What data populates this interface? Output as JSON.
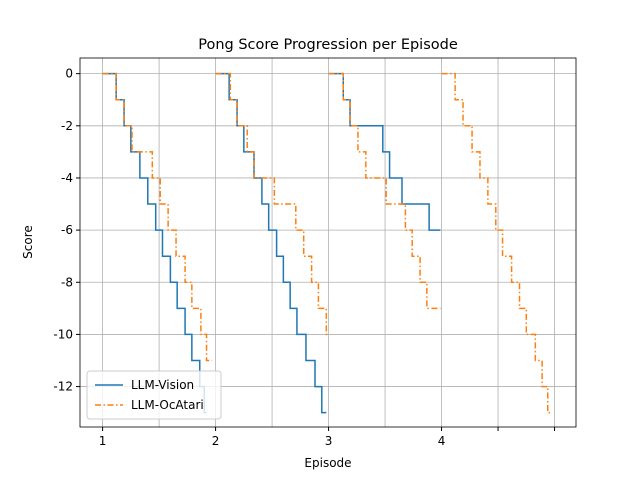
{
  "chart_data": {
    "type": "step",
    "title": "Pong Score Progression per Episode",
    "xlabel": "Episode",
    "ylabel": "Score",
    "xlim": [
      0.8,
      5.19
    ],
    "ylim": [
      -13.55,
      0.6
    ],
    "xticks": [
      1,
      {
        "value": 1.5,
        "label": null
      },
      2,
      {
        "value": 2.5,
        "label": null
      },
      3,
      {
        "value": 3.5,
        "label": null
      },
      4,
      {
        "value": 4.5,
        "label": null
      },
      {
        "value": 5,
        "label": null
      }
    ],
    "yticks": [
      -12,
      -10,
      -8,
      -6,
      -4,
      -2,
      0
    ],
    "grid": true,
    "legend": "lower left",
    "series": [
      {
        "name": "LLM-Vision",
        "color": "#1f77b4",
        "dash": "solid",
        "x": [
          1.0,
          1.12,
          1.19,
          1.25,
          1.33,
          1.4,
          1.47,
          1.53,
          1.6,
          1.66,
          1.73,
          1.79,
          1.86,
          1.9,
          1.92,
          null,
          2.0,
          2.12,
          2.19,
          2.25,
          2.34,
          2.41,
          2.47,
          2.54,
          2.6,
          2.66,
          2.72,
          2.8,
          2.88,
          2.94,
          2.98,
          null,
          3.0,
          3.13,
          3.19,
          3.48,
          3.54,
          3.65,
          3.89,
          3.99
        ],
        "values": [
          0,
          -1,
          -2,
          -3,
          -4,
          -5,
          -6,
          -7,
          -8,
          -9,
          -10,
          -11,
          -12,
          -13,
          -13,
          null,
          0,
          -1,
          -2,
          -3,
          -4,
          -5,
          -6,
          -7,
          -8,
          -9,
          -10,
          -11,
          -12,
          -13,
          -13,
          null,
          0,
          -1,
          -2,
          -3,
          -4,
          -5,
          -6,
          -6
        ]
      },
      {
        "name": "LLM-OcAtari",
        "color": "#ff7f0e",
        "dash": "dashdot",
        "x": [
          1.0,
          1.12,
          1.19,
          1.26,
          1.44,
          1.51,
          1.58,
          1.65,
          1.73,
          1.79,
          1.87,
          1.92,
          1.97,
          null,
          2.0,
          2.13,
          2.19,
          2.28,
          2.34,
          2.52,
          2.71,
          2.78,
          2.85,
          2.91,
          2.98,
          2.99,
          null,
          3.0,
          3.13,
          3.19,
          3.26,
          3.33,
          3.51,
          3.68,
          3.74,
          3.81,
          3.87,
          3.99,
          null,
          4.0,
          4.12,
          4.19,
          4.27,
          4.34,
          4.41,
          4.48,
          4.54,
          4.62,
          4.69,
          4.75,
          4.83,
          4.89,
          4.94,
          4.98
        ],
        "values": [
          0,
          -1,
          -2,
          -3,
          -4,
          -5,
          -6,
          -7,
          -8,
          -9,
          -10,
          -11,
          -11,
          null,
          0,
          -1,
          -2,
          -3,
          -4,
          -5,
          -6,
          -7,
          -8,
          -9,
          -10,
          -10,
          null,
          0,
          -1,
          -2,
          -3,
          -4,
          -5,
          -6,
          -7,
          -8,
          -9,
          -9,
          null,
          0,
          -1,
          -2,
          -3,
          -4,
          -5,
          -6,
          -7,
          -8,
          -9,
          -10,
          -11,
          -12,
          -13,
          -13
        ]
      }
    ]
  }
}
